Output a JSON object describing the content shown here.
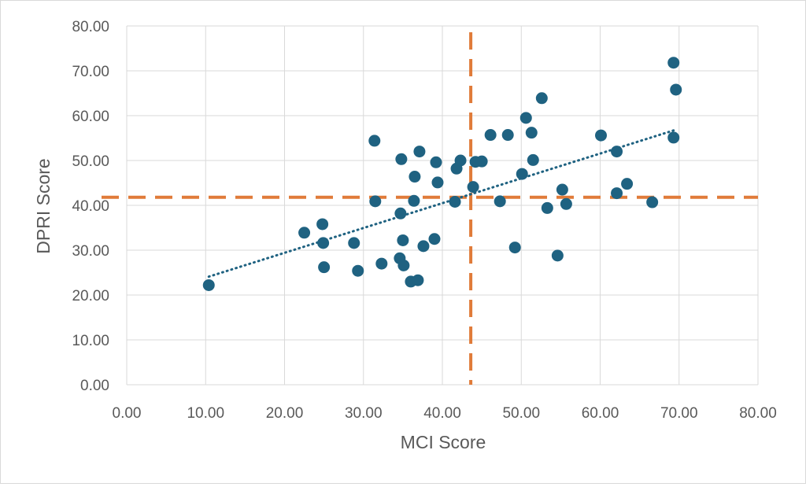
{
  "chart_data": {
    "type": "scatter",
    "xlabel": "MCI Score",
    "ylabel": "DPRI Score",
    "xlim": [
      0,
      80
    ],
    "ylim": [
      0,
      80
    ],
    "x_ticks": [
      "0.00",
      "10.00",
      "20.00",
      "30.00",
      "40.00",
      "50.00",
      "60.00",
      "70.00",
      "80.00"
    ],
    "y_ticks": [
      "0.00",
      "10.00",
      "20.00",
      "30.00",
      "40.00",
      "50.00",
      "60.00",
      "70.00",
      "80.00"
    ],
    "grid": true,
    "legend": "none",
    "colors": {
      "points": "#1f6281",
      "trendline": "#1f6281",
      "reference_lines": "#e07b39",
      "grid": "#d9d9d9"
    },
    "points": [
      [
        10.4,
        22.2
      ],
      [
        22.5,
        33.9
      ],
      [
        24.8,
        35.8
      ],
      [
        24.9,
        31.6
      ],
      [
        25.0,
        26.2
      ],
      [
        28.8,
        31.6
      ],
      [
        29.3,
        25.4
      ],
      [
        31.4,
        54.4
      ],
      [
        31.5,
        40.9
      ],
      [
        32.3,
        27.0
      ],
      [
        34.6,
        28.2
      ],
      [
        34.7,
        38.2
      ],
      [
        34.8,
        50.3
      ],
      [
        35.0,
        32.2
      ],
      [
        35.1,
        26.6
      ],
      [
        36.0,
        23.0
      ],
      [
        36.4,
        41.0
      ],
      [
        36.5,
        46.4
      ],
      [
        36.9,
        23.3
      ],
      [
        37.1,
        52.0
      ],
      [
        37.6,
        30.9
      ],
      [
        39.0,
        32.5
      ],
      [
        39.2,
        49.6
      ],
      [
        39.4,
        45.1
      ],
      [
        41.6,
        40.8
      ],
      [
        41.8,
        48.2
      ],
      [
        42.3,
        50.0
      ],
      [
        43.9,
        44.1
      ],
      [
        44.2,
        49.7
      ],
      [
        45.0,
        49.8
      ],
      [
        46.1,
        55.7
      ],
      [
        47.3,
        40.9
      ],
      [
        48.3,
        55.7
      ],
      [
        49.2,
        30.6
      ],
      [
        50.1,
        47.0
      ],
      [
        50.6,
        59.5
      ],
      [
        51.3,
        56.2
      ],
      [
        51.5,
        50.1
      ],
      [
        52.6,
        63.9
      ],
      [
        53.3,
        39.4
      ],
      [
        54.6,
        28.8
      ],
      [
        55.2,
        43.5
      ],
      [
        55.7,
        40.3
      ],
      [
        60.1,
        55.6
      ],
      [
        62.1,
        52.0
      ],
      [
        62.1,
        42.7
      ],
      [
        63.4,
        44.8
      ],
      [
        66.6,
        40.7
      ],
      [
        69.3,
        71.8
      ],
      [
        69.3,
        55.1
      ],
      [
        69.6,
        65.8
      ]
    ],
    "trendline": {
      "style": "dotted",
      "x": [
        10.4,
        69.3
      ],
      "y": [
        24.1,
        56.7
      ]
    },
    "reference_lines": {
      "style": "dashed",
      "vertical_x": 43.6,
      "horizontal_y": 41.8
    }
  }
}
